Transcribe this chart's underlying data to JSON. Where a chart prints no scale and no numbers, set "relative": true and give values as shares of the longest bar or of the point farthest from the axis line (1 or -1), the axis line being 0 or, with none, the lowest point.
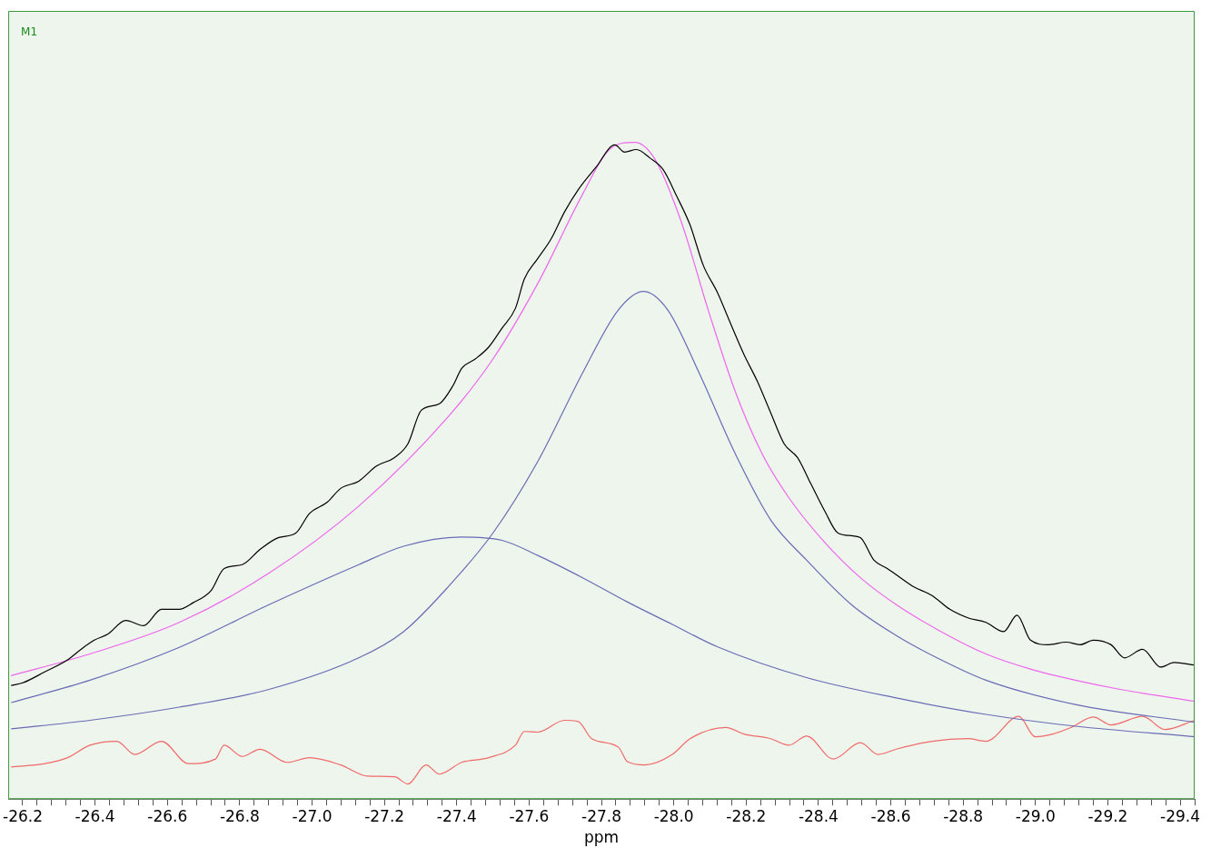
{
  "chart_data": {
    "type": "line",
    "relative": true,
    "xlabel": "ppm",
    "annotations": [
      "M1"
    ],
    "grid": false,
    "legend": false,
    "marker": "none",
    "line_style": "solid",
    "xlim": [
      -26.16,
      -29.44
    ],
    "xticks": [
      -26.2,
      {
        "value": -26.24,
        "label": null
      },
      {
        "value": -26.28,
        "label": null
      },
      {
        "value": -26.32,
        "label": null
      },
      {
        "value": -26.36,
        "label": null
      },
      -26.4,
      {
        "value": -26.44,
        "label": null
      },
      {
        "value": -26.48,
        "label": null
      },
      {
        "value": -26.52,
        "label": null
      },
      {
        "value": -26.56,
        "label": null
      },
      -26.6,
      {
        "value": -26.64,
        "label": null
      },
      {
        "value": -26.68,
        "label": null
      },
      {
        "value": -26.72,
        "label": null
      },
      {
        "value": -26.76,
        "label": null
      },
      -26.8,
      {
        "value": -26.84,
        "label": null
      },
      {
        "value": -26.88,
        "label": null
      },
      {
        "value": -26.92,
        "label": null
      },
      {
        "value": -26.96,
        "label": null
      },
      {
        "value": -27,
        "label": "-27.0"
      },
      {
        "value": -27.04,
        "label": null
      },
      {
        "value": -27.08,
        "label": null
      },
      {
        "value": -27.12,
        "label": null
      },
      {
        "value": -27.16,
        "label": null
      },
      -27.2,
      {
        "value": -27.24,
        "label": null
      },
      {
        "value": -27.28,
        "label": null
      },
      {
        "value": -27.32,
        "label": null
      },
      {
        "value": -27.36,
        "label": null
      },
      -27.4,
      {
        "value": -27.44,
        "label": null
      },
      {
        "value": -27.48,
        "label": null
      },
      {
        "value": -27.52,
        "label": null
      },
      {
        "value": -27.56,
        "label": null
      },
      -27.6,
      {
        "value": -27.64,
        "label": null
      },
      {
        "value": -27.68,
        "label": null
      },
      {
        "value": -27.72,
        "label": null
      },
      {
        "value": -27.76,
        "label": null
      },
      -27.8,
      {
        "value": -27.84,
        "label": null
      },
      {
        "value": -27.88,
        "label": null
      },
      {
        "value": -27.92,
        "label": null
      },
      {
        "value": -27.96,
        "label": null
      },
      {
        "value": -28,
        "label": "-28.0"
      },
      {
        "value": -28.04,
        "label": null
      },
      {
        "value": -28.08,
        "label": null
      },
      {
        "value": -28.12,
        "label": null
      },
      {
        "value": -28.16,
        "label": null
      },
      -28.2,
      {
        "value": -28.24,
        "label": null
      },
      {
        "value": -28.28,
        "label": null
      },
      {
        "value": -28.32,
        "label": null
      },
      {
        "value": -28.36,
        "label": null
      },
      -28.4,
      {
        "value": -28.44,
        "label": null
      },
      {
        "value": -28.48,
        "label": null
      },
      {
        "value": -28.52,
        "label": null
      },
      {
        "value": -28.56,
        "label": null
      },
      -28.6,
      {
        "value": -28.64,
        "label": null
      },
      {
        "value": -28.68,
        "label": null
      },
      {
        "value": -28.72,
        "label": null
      },
      {
        "value": -28.76,
        "label": null
      },
      -28.8,
      {
        "value": -28.84,
        "label": null
      },
      {
        "value": -28.88,
        "label": null
      },
      {
        "value": -28.92,
        "label": null
      },
      {
        "value": -28.96,
        "label": null
      },
      {
        "value": -29,
        "label": "-29.0"
      },
      {
        "value": -29.04,
        "label": null
      },
      {
        "value": -29.08,
        "label": null
      },
      {
        "value": -29.12,
        "label": null
      },
      {
        "value": -29.16,
        "label": null
      },
      -29.2,
      {
        "value": -29.24,
        "label": null
      },
      {
        "value": -29.28,
        "label": null
      },
      {
        "value": -29.32,
        "label": null
      },
      {
        "value": -29.36,
        "label": null
      },
      -29.4,
      {
        "value": -29.44,
        "label": null
      }
    ],
    "series": [
      {
        "color": "#6b6bb5",
        "x": [
          -26.168,
          -26.386,
          -26.633,
          -26.881,
          -27.129,
          -27.253,
          -27.411,
          -27.525,
          -27.624,
          -27.748,
          -27.872,
          -27.996,
          -28.12,
          -28.367,
          -28.615,
          -28.863,
          -29.11,
          -29.44
        ],
        "values": [
          0.147,
          0.181,
          0.231,
          0.296,
          0.357,
          0.385,
          0.399,
          0.394,
          0.371,
          0.337,
          0.3,
          0.266,
          0.232,
          0.185,
          0.154,
          0.129,
          0.111,
          0.095
        ]
      },
      {
        "color": "#6b6bb5",
        "x": [
          -26.168,
          -26.386,
          -26.633,
          -26.881,
          -27.129,
          -27.253,
          -27.376,
          -27.5,
          -27.624,
          -27.748,
          -27.847,
          -27.916,
          -27.983,
          -28.07,
          -28.169,
          -28.268,
          -28.367,
          -28.491,
          -28.615,
          -28.739,
          -28.863,
          -29.11,
          -29.44
        ],
        "values": [
          0.107,
          0.12,
          0.14,
          0.167,
          0.215,
          0.255,
          0.323,
          0.405,
          0.514,
          0.649,
          0.745,
          0.773,
          0.745,
          0.649,
          0.527,
          0.425,
          0.364,
          0.296,
          0.249,
          0.212,
          0.181,
          0.144,
          0.117
        ]
      },
      {
        "color": "#f06a6a",
        "x": [
          -26.168,
          -26.262,
          -26.324,
          -26.386,
          -26.46,
          -26.51,
          -26.584,
          -26.658,
          -26.733,
          -26.757,
          -26.807,
          -26.856,
          -26.931,
          -26.993,
          -27.079,
          -27.154,
          -27.228,
          -27.265,
          -27.315,
          -27.352,
          -27.414,
          -27.488,
          -27.562,
          -27.587,
          -27.624,
          -27.698,
          -27.736,
          -27.773,
          -27.847,
          -27.872,
          -27.921,
          -27.996,
          -28.045,
          -28.144,
          -28.194,
          -28.268,
          -28.318,
          -28.367,
          -28.441,
          -28.516,
          -28.565,
          -28.615,
          -28.714,
          -28.813,
          -28.863,
          -28.954,
          -28.999,
          -29.048,
          -29.098,
          -29.16,
          -29.209,
          -29.296,
          -29.358,
          -29.44
        ],
        "values": [
          0.049,
          0.054,
          0.063,
          0.082,
          0.088,
          0.068,
          0.088,
          0.054,
          0.061,
          0.082,
          0.065,
          0.076,
          0.056,
          0.063,
          0.052,
          0.035,
          0.034,
          0.023,
          0.052,
          0.038,
          0.056,
          0.063,
          0.082,
          0.103,
          0.102,
          0.12,
          0.118,
          0.092,
          0.079,
          0.057,
          0.052,
          0.068,
          0.092,
          0.109,
          0.099,
          0.092,
          0.082,
          0.096,
          0.061,
          0.086,
          0.068,
          0.076,
          0.088,
          0.092,
          0.088,
          0.126,
          0.095,
          0.099,
          0.109,
          0.125,
          0.113,
          0.126,
          0.106,
          0.12
        ]
      },
      {
        "color": "#000000",
        "x": [
          -26.168,
          -26.2,
          -26.262,
          -26.324,
          -26.361,
          -26.398,
          -26.435,
          -26.485,
          -26.534,
          -26.584,
          -26.633,
          -26.671,
          -26.72,
          -26.757,
          -26.807,
          -26.856,
          -26.906,
          -26.955,
          -26.993,
          -27.042,
          -27.079,
          -27.129,
          -27.178,
          -27.228,
          -27.265,
          -27.302,
          -27.352,
          -27.389,
          -27.414,
          -27.451,
          -27.488,
          -27.525,
          -27.562,
          -27.587,
          -27.624,
          -27.661,
          -27.698,
          -27.736,
          -27.785,
          -27.837,
          -27.864,
          -27.897,
          -27.934,
          -27.971,
          -28.008,
          -28.045,
          -28.082,
          -28.12,
          -28.157,
          -28.194,
          -28.231,
          -28.268,
          -28.305,
          -28.342,
          -28.379,
          -28.417,
          -28.454,
          -28.491,
          -28.516,
          -28.553,
          -28.59,
          -28.627,
          -28.664,
          -28.714,
          -28.763,
          -28.813,
          -28.863,
          -28.912,
          -28.949,
          -28.986,
          -29.036,
          -29.085,
          -29.123,
          -29.16,
          -29.209,
          -29.246,
          -29.296,
          -29.346,
          -29.383,
          -29.44
        ],
        "values": [
          0.173,
          0.177,
          0.194,
          0.212,
          0.228,
          0.242,
          0.251,
          0.272,
          0.264,
          0.289,
          0.289,
          0.299,
          0.317,
          0.351,
          0.357,
          0.38,
          0.398,
          0.405,
          0.435,
          0.452,
          0.473,
          0.484,
          0.507,
          0.52,
          0.541,
          0.592,
          0.602,
          0.629,
          0.656,
          0.67,
          0.688,
          0.717,
          0.747,
          0.792,
          0.823,
          0.853,
          0.894,
          0.928,
          0.962,
          0.996,
          0.985,
          0.989,
          0.976,
          0.958,
          0.918,
          0.874,
          0.812,
          0.772,
          0.724,
          0.677,
          0.636,
          0.588,
          0.541,
          0.52,
          0.48,
          0.439,
          0.405,
          0.401,
          0.398,
          0.364,
          0.351,
          0.337,
          0.323,
          0.31,
          0.289,
          0.276,
          0.269,
          0.255,
          0.28,
          0.242,
          0.235,
          0.239,
          0.235,
          0.242,
          0.235,
          0.215,
          0.228,
          0.201,
          0.208,
          0.204
        ]
      },
      {
        "color": "#ee66ee",
        "x": [
          -26.168,
          -26.386,
          -26.633,
          -26.881,
          -27.129,
          -27.376,
          -27.5,
          -27.624,
          -27.748,
          -27.822,
          -27.892,
          -27.946,
          -28.02,
          -28.095,
          -28.169,
          -28.243,
          -28.318,
          -28.417,
          -28.516,
          -28.615,
          -28.739,
          -28.863,
          -28.986,
          -29.11,
          -29.234,
          -29.44
        ],
        "values": [
          0.188,
          0.221,
          0.269,
          0.344,
          0.446,
          0.582,
          0.67,
          0.785,
          0.921,
          0.989,
          1,
          0.976,
          0.88,
          0.745,
          0.622,
          0.527,
          0.459,
          0.391,
          0.337,
          0.296,
          0.255,
          0.221,
          0.198,
          0.181,
          0.167,
          0.149
        ]
      }
    ]
  }
}
